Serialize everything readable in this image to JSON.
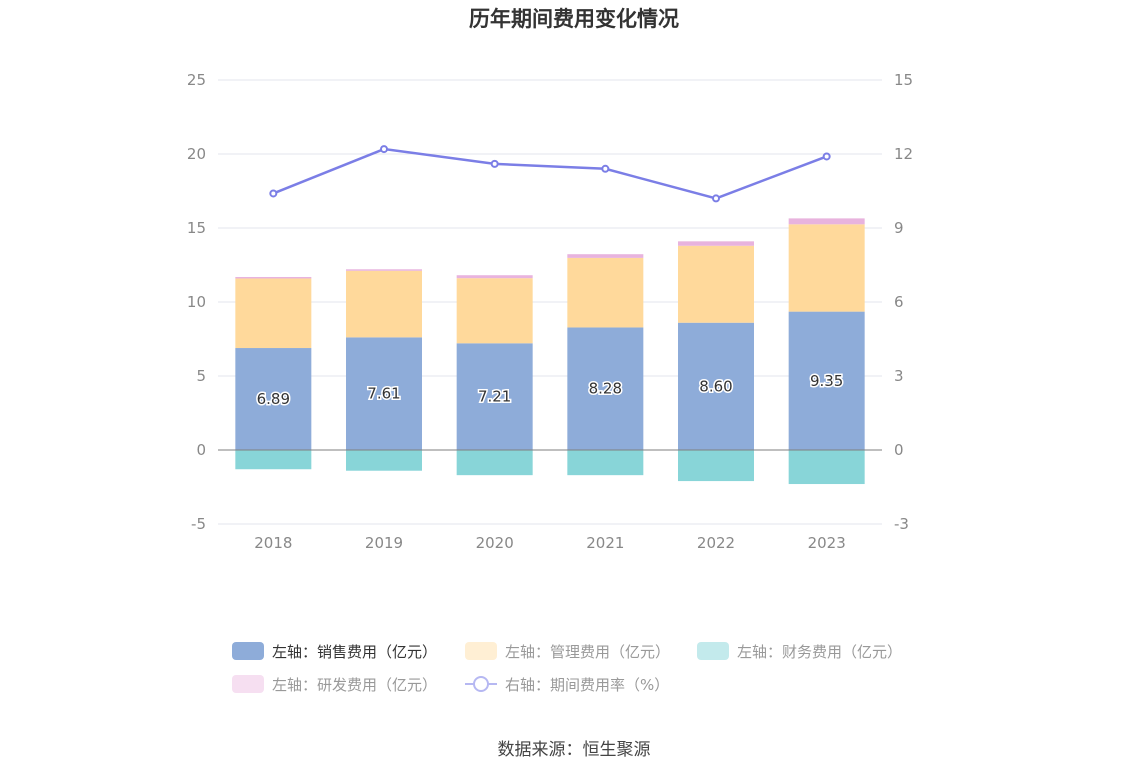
{
  "title": "历年期间费用变化情况",
  "source": "数据来源：恒生聚源",
  "chart_data": {
    "type": "bar",
    "stacked": true,
    "categories": [
      "2018",
      "2019",
      "2020",
      "2021",
      "2022",
      "2023"
    ],
    "left_axis": {
      "min": -5,
      "max": 25,
      "ticks": [
        "-5",
        "0",
        "5",
        "10",
        "15",
        "20",
        "25"
      ]
    },
    "right_axis": {
      "min": -3,
      "max": 15,
      "ticks": [
        "-3",
        "0",
        "3",
        "6",
        "9",
        "12",
        "15"
      ]
    },
    "grid": true,
    "legend_position": "bottom",
    "series": [
      {
        "name": "左轴：销售费用（亿元）",
        "type": "bar",
        "axis": "left",
        "color": "#8eacd9",
        "values": [
          6.89,
          7.61,
          7.21,
          8.28,
          8.6,
          9.35
        ],
        "labels": [
          "6.89",
          "7.61",
          "7.21",
          "8.28",
          "8.60",
          "9.35"
        ]
      },
      {
        "name": "左轴：管理费用（亿元）",
        "type": "bar",
        "axis": "left",
        "color": "#ffd99b",
        "values": [
          4.7,
          4.5,
          4.4,
          4.7,
          5.2,
          5.9
        ]
      },
      {
        "name": "左轴：财务费用（亿元）",
        "type": "bar",
        "axis": "left",
        "color": "#88d5d8",
        "values": [
          -1.3,
          -1.4,
          -1.7,
          -1.7,
          -2.1,
          -2.3
        ]
      },
      {
        "name": "左轴：研发费用（亿元）",
        "type": "bar",
        "axis": "left",
        "color": "#e8b3de",
        "values": [
          0.1,
          0.1,
          0.2,
          0.25,
          0.3,
          0.4
        ]
      },
      {
        "name": "右轴：期间费用率（%）",
        "type": "line",
        "axis": "right",
        "color": "#7b7ee6",
        "values": [
          10.4,
          12.2,
          11.6,
          11.4,
          10.2,
          11.9
        ]
      }
    ]
  },
  "legend": {
    "text_active": "#333333",
    "text_dim": "#999999",
    "swatch_dim": {
      "左轴：管理费用（亿元）": "#ffefd4",
      "左轴：财务费用（亿元）": "#c3eaec",
      "左轴：研发费用（亿元）": "#f6dff1",
      "右轴：期间费用率（%）": "#b6b8f2"
    },
    "dim_series": [
      "左轴：管理费用（亿元）",
      "左轴：财务费用（亿元）",
      "左轴：研发费用（亿元）",
      "右轴：期间费用率（%）"
    ]
  }
}
